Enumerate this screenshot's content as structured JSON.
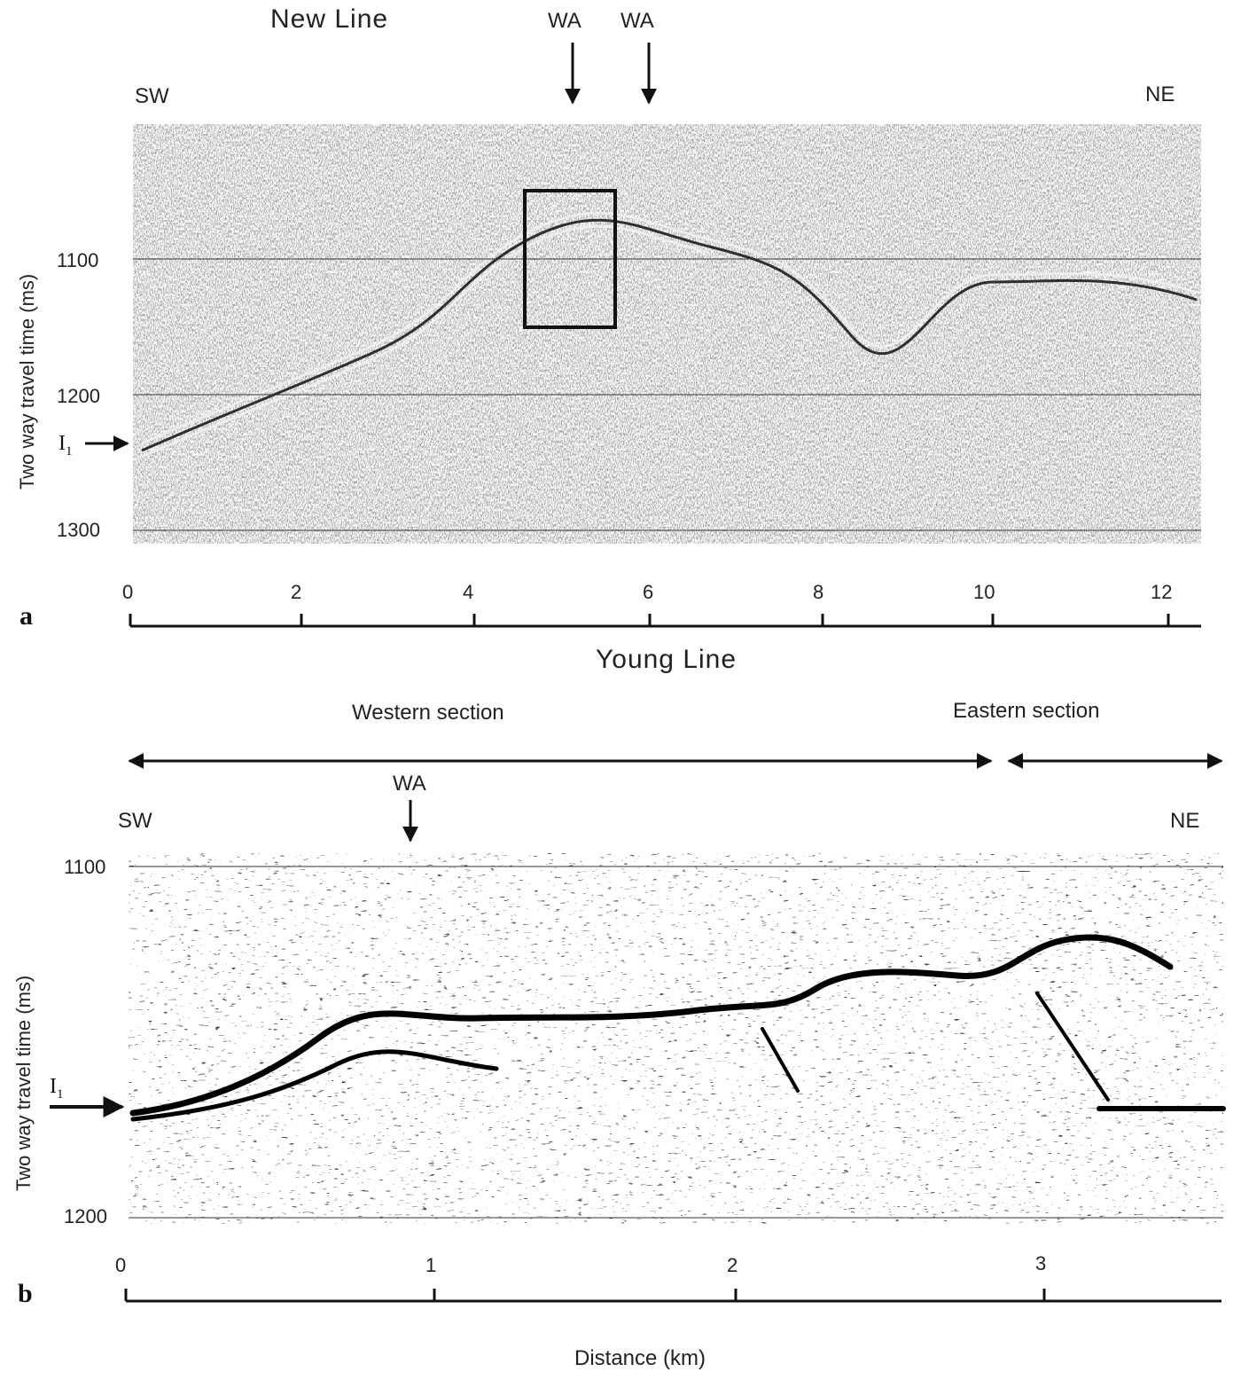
{
  "panel_a": {
    "title": "New Line",
    "left_dir": "SW",
    "right_dir": "NE",
    "wa_markers": [
      "WA",
      "WA"
    ],
    "y_axis_label": "Two way travel time (ms)",
    "y_ticks": [
      "1100",
      "1200",
      "1300"
    ],
    "x_ticks": [
      "0",
      "2",
      "4",
      "6",
      "8",
      "10",
      "12"
    ],
    "reflector_label": "I",
    "reflector_sub": "1",
    "panel_letter": "a"
  },
  "panel_b": {
    "title": "Young Line",
    "section_west": "Western section",
    "section_east": "Eastern section",
    "left_dir": "SW",
    "right_dir": "NE",
    "wa_marker": "WA",
    "y_axis_label": "Two way travel time (ms)",
    "y_ticks": [
      "1100",
      "1200"
    ],
    "x_ticks": [
      "0",
      "1",
      "2",
      "3"
    ],
    "x_axis_label": "Distance (km)",
    "reflector_label": "I",
    "reflector_sub": "1",
    "panel_letter": "b"
  },
  "colors": {
    "ink": "#111111",
    "paper": "#ffffff",
    "seismic_bg": "#7a7a7a"
  }
}
